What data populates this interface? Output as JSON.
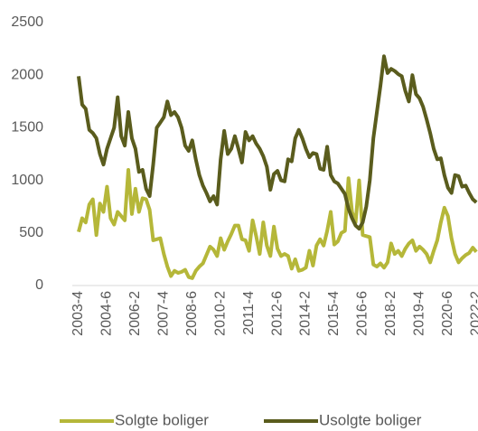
{
  "chart_data": {
    "type": "line",
    "categories": [
      "2003-4",
      null,
      null,
      null,
      null,
      null,
      null,
      null,
      "2004-6",
      null,
      null,
      null,
      null,
      null,
      null,
      null,
      "2006-2",
      null,
      null,
      null,
      null,
      null,
      null,
      null,
      "2007-4",
      null,
      null,
      null,
      null,
      null,
      null,
      null,
      "2008-6",
      null,
      null,
      null,
      null,
      null,
      null,
      null,
      "2010-2",
      null,
      null,
      null,
      null,
      null,
      null,
      null,
      "2011-4",
      null,
      null,
      null,
      null,
      null,
      null,
      null,
      "2012-6",
      null,
      null,
      null,
      null,
      null,
      null,
      null,
      "2014-2",
      null,
      null,
      null,
      null,
      null,
      null,
      null,
      "2015-4",
      null,
      null,
      null,
      null,
      null,
      null,
      null,
      "2016-6",
      null,
      null,
      null,
      null,
      null,
      null,
      null,
      "2018-2",
      null,
      null,
      null,
      null,
      null,
      null,
      null,
      "2019-4",
      null,
      null,
      null,
      null,
      null,
      null,
      null,
      "2020-6",
      null,
      null,
      null,
      null,
      null,
      null,
      null,
      "2022-2"
    ],
    "series": [
      {
        "name": "Solgte boliger",
        "color": "#b5b739",
        "values": [
          510,
          640,
          600,
          770,
          820,
          480,
          780,
          700,
          940,
          640,
          580,
          700,
          660,
          620,
          1100,
          680,
          920,
          700,
          830,
          820,
          720,
          430,
          440,
          450,
          300,
          180,
          90,
          140,
          120,
          130,
          150,
          80,
          70,
          140,
          180,
          210,
          290,
          370,
          340,
          280,
          450,
          340,
          420,
          490,
          570,
          570,
          440,
          430,
          330,
          620,
          470,
          300,
          600,
          380,
          280,
          560,
          350,
          280,
          300,
          280,
          160,
          250,
          140,
          150,
          170,
          330,
          190,
          380,
          440,
          380,
          520,
          700,
          390,
          420,
          500,
          520,
          1020,
          700,
          600,
          1000,
          480,
          470,
          460,
          200,
          180,
          210,
          170,
          220,
          400,
          300,
          330,
          280,
          350,
          400,
          430,
          330,
          370,
          340,
          300,
          220,
          330,
          430,
          600,
          740,
          660,
          450,
          300,
          220,
          260,
          290,
          310,
          360,
          320
        ]
      },
      {
        "name": "Usolgte boliger",
        "color": "#5a5c1d",
        "values": [
          1990,
          1720,
          1680,
          1480,
          1450,
          1400,
          1250,
          1150,
          1300,
          1400,
          1500,
          1790,
          1420,
          1330,
          1650,
          1400,
          1300,
          1080,
          1100,
          920,
          850,
          1150,
          1500,
          1550,
          1600,
          1750,
          1620,
          1650,
          1600,
          1500,
          1330,
          1280,
          1380,
          1200,
          1050,
          950,
          880,
          800,
          850,
          770,
          1200,
          1470,
          1250,
          1300,
          1420,
          1300,
          1170,
          1460,
          1380,
          1420,
          1350,
          1300,
          1230,
          1130,
          910,
          1060,
          1090,
          1000,
          990,
          1200,
          1180,
          1400,
          1480,
          1400,
          1300,
          1220,
          1260,
          1250,
          1110,
          1100,
          1320,
          1050,
          990,
          970,
          920,
          870,
          730,
          640,
          570,
          540,
          600,
          750,
          1000,
          1400,
          1650,
          1900,
          2180,
          2020,
          2060,
          2040,
          2010,
          1990,
          1850,
          1750,
          2000,
          1820,
          1780,
          1700,
          1580,
          1450,
          1300,
          1200,
          1210,
          1050,
          930,
          880,
          1050,
          1040,
          940,
          950,
          880,
          820,
          790
        ]
      }
    ],
    "ylim": [
      0,
      2500
    ],
    "yticks": [
      0,
      500,
      1000,
      1500,
      2000,
      2500
    ],
    "grid": false,
    "legend": "bottom"
  }
}
